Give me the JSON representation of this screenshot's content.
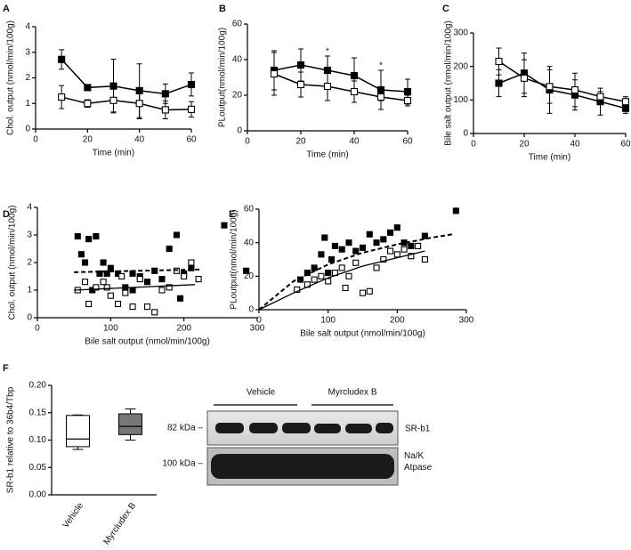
{
  "chart_data": [
    {
      "type": "line",
      "panel": "A",
      "ylabel": "Chol. output (nmol/min/100g)",
      "xlabel": "Time (min)",
      "x": [
        10,
        20,
        30,
        40,
        50,
        60
      ],
      "xlim": [
        0,
        60
      ],
      "xticks": [
        0,
        20,
        40,
        60
      ],
      "ylim": [
        0,
        4
      ],
      "yticks": [
        0,
        1,
        2,
        3,
        4
      ],
      "series": [
        {
          "color": "#000000",
          "fill": "#000000",
          "values": [
            2.72,
            1.62,
            1.68,
            1.5,
            1.38,
            1.74
          ],
          "errors": [
            0.38,
            0.05,
            1.05,
            1.05,
            0.38,
            0.45
          ]
        },
        {
          "color": "#000000",
          "fill": "#ffffff",
          "values": [
            1.25,
            1.0,
            1.12,
            1.0,
            0.75,
            0.77
          ],
          "errors": [
            0.45,
            0.15,
            0.45,
            0.6,
            0.35,
            0.3
          ]
        }
      ]
    },
    {
      "type": "line",
      "panel": "B",
      "ylabel": "PLoutput(nmol/min/100g)",
      "xlabel": "Time (min)",
      "x": [
        10,
        20,
        30,
        40,
        50,
        60
      ],
      "xlim": [
        0,
        60
      ],
      "xticks": [
        0,
        20,
        40,
        60
      ],
      "ylim": [
        0,
        60
      ],
      "yticks": [
        0,
        20,
        40,
        60
      ],
      "series": [
        {
          "color": "#000000",
          "fill": "#000000",
          "values": [
            34,
            37,
            34,
            31,
            23,
            22
          ],
          "errors": [
            11,
            9,
            8,
            10,
            11,
            7
          ]
        },
        {
          "color": "#000000",
          "fill": "#ffffff",
          "values": [
            32,
            26,
            25,
            22,
            19,
            17
          ],
          "errors": [
            12,
            7,
            8,
            6,
            2,
            3
          ]
        }
      ],
      "annotations": [
        {
          "text": "*",
          "x": 30
        },
        {
          "text": "*",
          "x": 50
        }
      ]
    },
    {
      "type": "line",
      "panel": "C",
      "ylabel": "Bile salt output (nmol/min/100g)",
      "xlabel": "Time (min)",
      "x": [
        10,
        20,
        30,
        40,
        50,
        60
      ],
      "xlim": [
        0,
        60
      ],
      "xticks": [
        0,
        20,
        40,
        60
      ],
      "ylim": [
        0,
        300
      ],
      "yticks": [
        0,
        100,
        200,
        300
      ],
      "series": [
        {
          "color": "#000000",
          "fill": "#000000",
          "values": [
            150,
            180,
            130,
            115,
            95,
            75
          ],
          "errors": [
            40,
            60,
            70,
            45,
            40,
            15
          ]
        },
        {
          "color": "#000000",
          "fill": "#ffffff",
          "values": [
            215,
            165,
            140,
            130,
            110,
            95
          ],
          "errors": [
            40,
            55,
            50,
            50,
            15,
            15
          ]
        }
      ]
    },
    {
      "type": "scatter",
      "panel": "D",
      "ylabel": "Chol. output (nmol/min/100g)",
      "xlabel": "Bile salt output (nmol/min/100g)",
      "xlim": [
        0,
        300
      ],
      "xticks": [
        0,
        100,
        200,
        300
      ],
      "ylim": [
        0,
        4
      ],
      "yticks": [
        0,
        1,
        2,
        3,
        4
      ],
      "series": [
        {
          "color": "#000000",
          "fill": "#000000",
          "x": [
            55,
            60,
            65,
            70,
            80,
            85,
            90,
            95,
            100,
            110,
            120,
            130,
            140,
            150,
            160,
            170,
            180,
            190,
            200,
            210,
            255,
            285,
            75,
            130,
            195
          ],
          "values": [
            2.95,
            2.3,
            2.0,
            2.85,
            2.95,
            1.6,
            2.0,
            1.6,
            1.8,
            1.6,
            1.1,
            1.6,
            1.5,
            1.3,
            1.7,
            1.4,
            2.5,
            3.0,
            1.6,
            1.8,
            3.35,
            1.7,
            1.0,
            1.0,
            0.7
          ]
        },
        {
          "color": "#000000",
          "fill": "#ffffff",
          "x": [
            55,
            65,
            70,
            80,
            90,
            100,
            110,
            120,
            130,
            140,
            150,
            160,
            170,
            180,
            190,
            200,
            210,
            220,
            95,
            115
          ],
          "values": [
            1.0,
            1.3,
            0.5,
            1.1,
            1.3,
            0.8,
            0.5,
            0.9,
            0.4,
            1.4,
            0.4,
            0.2,
            1.0,
            1.1,
            1.7,
            1.5,
            2.0,
            1.4,
            1.1,
            1.5
          ]
        }
      ],
      "fits": [
        {
          "x": [
            50,
            225
          ],
          "values": [
            1.65,
            1.75
          ],
          "dashed": true
        },
        {
          "x": [
            50,
            215
          ],
          "values": [
            1.0,
            1.2
          ],
          "dashed": false
        }
      ]
    },
    {
      "type": "scatter",
      "panel": "E",
      "ylabel": "PLoutput(nmol/min/100g)",
      "xlabel": "Bile salt output (nmol/min/100g)",
      "xlim": [
        0,
        300
      ],
      "xticks": [
        0,
        100,
        200,
        300
      ],
      "ylim": [
        0,
        60
      ],
      "yticks": [
        0,
        20,
        40,
        60
      ],
      "series": [
        {
          "color": "#000000",
          "fill": "#000000",
          "x": [
            60,
            70,
            80,
            90,
            95,
            105,
            120,
            130,
            140,
            150,
            160,
            170,
            180,
            190,
            200,
            210,
            220,
            240,
            285,
            110,
            100
          ],
          "values": [
            18,
            22,
            25,
            33,
            43,
            30,
            36,
            40,
            35,
            37,
            45,
            40,
            42,
            46,
            49,
            40,
            38,
            44,
            59,
            38,
            22
          ]
        },
        {
          "color": "#000000",
          "fill": "#ffffff",
          "x": [
            55,
            70,
            80,
            90,
            100,
            110,
            120,
            130,
            140,
            150,
            160,
            170,
            180,
            190,
            200,
            210,
            220,
            230,
            240,
            125
          ],
          "values": [
            12,
            15,
            18,
            20,
            17,
            22,
            25,
            20,
            28,
            10,
            11,
            25,
            30,
            35,
            33,
            36,
            32,
            38,
            30,
            13
          ]
        }
      ],
      "fits": [
        {
          "x": [
            0,
            50,
            100,
            150,
            200,
            250,
            280
          ],
          "values": [
            0,
            17,
            27,
            34,
            39,
            43,
            45
          ],
          "dashed": true
        },
        {
          "x": [
            0,
            50,
            100,
            150,
            200,
            240
          ],
          "values": [
            0,
            10,
            19,
            26,
            31,
            35
          ],
          "dashed": false
        }
      ]
    },
    {
      "type": "box",
      "panel": "F",
      "ylabel": "SR-b1 relative to 36b4/Tbp",
      "categories": [
        "Vehicle",
        "Myrcludex B"
      ],
      "ylim": [
        0,
        0.2
      ],
      "yticks": [
        {
          "value": 0,
          "label": "0.00"
        },
        {
          "value": 0.05,
          "label": "0.05"
        },
        {
          "value": 0.1,
          "label": "0.10"
        },
        {
          "value": 0.15,
          "label": "0.15"
        },
        {
          "value": 0.2,
          "label": "0.20"
        }
      ],
      "boxes": [
        {
          "min": 0.083,
          "q1": 0.088,
          "median": 0.102,
          "q3": 0.145,
          "max": 0.146,
          "fill": "#ffffff"
        },
        {
          "min": 0.1,
          "q1": 0.11,
          "median": 0.125,
          "q3": 0.148,
          "max": 0.157,
          "fill": "#777777"
        }
      ]
    }
  ],
  "blot": {
    "groups": [
      "Vehicle",
      "Myrcludex B"
    ],
    "markers": [
      "82 kDa –",
      "100 kDa –"
    ],
    "proteins": [
      "SR-b1",
      "Na/K Atpase"
    ]
  }
}
